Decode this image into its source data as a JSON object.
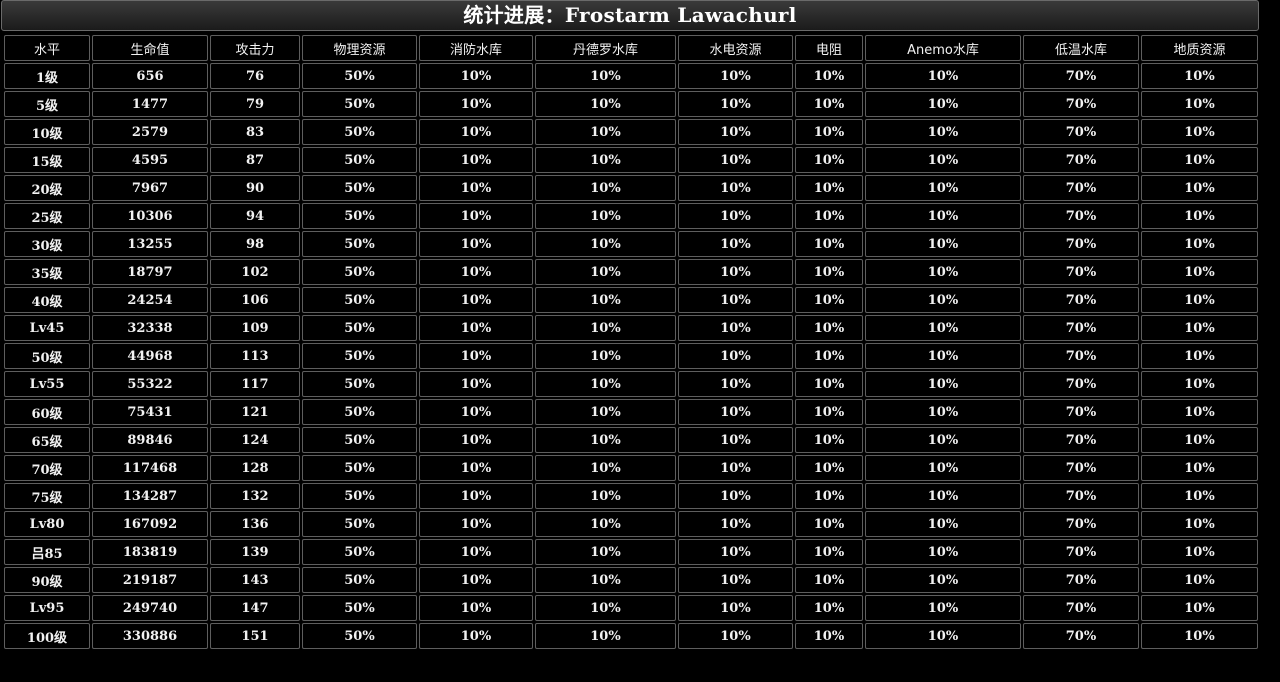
{
  "title": "统计进展：Frostarm Lawachurl",
  "columns": [
    "水平",
    "生命值",
    "攻击力",
    "物理资源",
    "消防水库",
    "丹德罗水库",
    "水电资源",
    "电阻",
    "Anemo水库",
    "低温水库",
    "地质资源"
  ],
  "rows": [
    [
      "1级",
      "656",
      "76",
      "50%",
      "10%",
      "10%",
      "10%",
      "10%",
      "10%",
      "70%",
      "10%"
    ],
    [
      "5级",
      "1477",
      "79",
      "50%",
      "10%",
      "10%",
      "10%",
      "10%",
      "10%",
      "70%",
      "10%"
    ],
    [
      "10级",
      "2579",
      "83",
      "50%",
      "10%",
      "10%",
      "10%",
      "10%",
      "10%",
      "70%",
      "10%"
    ],
    [
      "15级",
      "4595",
      "87",
      "50%",
      "10%",
      "10%",
      "10%",
      "10%",
      "10%",
      "70%",
      "10%"
    ],
    [
      "20级",
      "7967",
      "90",
      "50%",
      "10%",
      "10%",
      "10%",
      "10%",
      "10%",
      "70%",
      "10%"
    ],
    [
      "25级",
      "10306",
      "94",
      "50%",
      "10%",
      "10%",
      "10%",
      "10%",
      "10%",
      "70%",
      "10%"
    ],
    [
      "30级",
      "13255",
      "98",
      "50%",
      "10%",
      "10%",
      "10%",
      "10%",
      "10%",
      "70%",
      "10%"
    ],
    [
      "35级",
      "18797",
      "102",
      "50%",
      "10%",
      "10%",
      "10%",
      "10%",
      "10%",
      "70%",
      "10%"
    ],
    [
      "40级",
      "24254",
      "106",
      "50%",
      "10%",
      "10%",
      "10%",
      "10%",
      "10%",
      "70%",
      "10%"
    ],
    [
      "Lv45",
      "32338",
      "109",
      "50%",
      "10%",
      "10%",
      "10%",
      "10%",
      "10%",
      "70%",
      "10%"
    ],
    [
      "50级",
      "44968",
      "113",
      "50%",
      "10%",
      "10%",
      "10%",
      "10%",
      "10%",
      "70%",
      "10%"
    ],
    [
      "Lv55",
      "55322",
      "117",
      "50%",
      "10%",
      "10%",
      "10%",
      "10%",
      "10%",
      "70%",
      "10%"
    ],
    [
      "60级",
      "75431",
      "121",
      "50%",
      "10%",
      "10%",
      "10%",
      "10%",
      "10%",
      "70%",
      "10%"
    ],
    [
      "65级",
      "89846",
      "124",
      "50%",
      "10%",
      "10%",
      "10%",
      "10%",
      "10%",
      "70%",
      "10%"
    ],
    [
      "70级",
      "117468",
      "128",
      "50%",
      "10%",
      "10%",
      "10%",
      "10%",
      "10%",
      "70%",
      "10%"
    ],
    [
      "75级",
      "134287",
      "132",
      "50%",
      "10%",
      "10%",
      "10%",
      "10%",
      "10%",
      "70%",
      "10%"
    ],
    [
      "Lv80",
      "167092",
      "136",
      "50%",
      "10%",
      "10%",
      "10%",
      "10%",
      "10%",
      "70%",
      "10%"
    ],
    [
      "吕85",
      "183819",
      "139",
      "50%",
      "10%",
      "10%",
      "10%",
      "10%",
      "10%",
      "70%",
      "10%"
    ],
    [
      "90级",
      "219187",
      "143",
      "50%",
      "10%",
      "10%",
      "10%",
      "10%",
      "10%",
      "70%",
      "10%"
    ],
    [
      "Lv95",
      "249740",
      "147",
      "50%",
      "10%",
      "10%",
      "10%",
      "10%",
      "10%",
      "70%",
      "10%"
    ],
    [
      "100级",
      "330886",
      "151",
      "50%",
      "10%",
      "10%",
      "10%",
      "10%",
      "10%",
      "70%",
      "10%"
    ]
  ]
}
